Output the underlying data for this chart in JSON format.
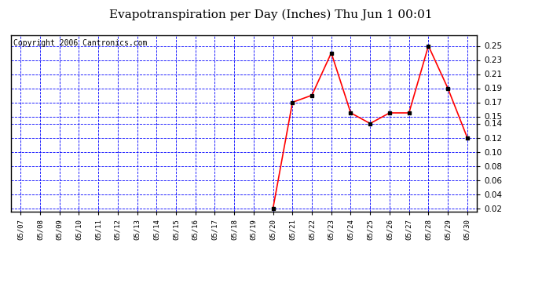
{
  "title": "Evapotranspiration per Day (Inches) Thu Jun 1 00:01",
  "copyright": "Copyright 2006 Cantronics.com",
  "x_labels": [
    "05/07",
    "05/08",
    "05/09",
    "05/10",
    "05/11",
    "05/12",
    "05/13",
    "05/14",
    "05/15",
    "05/16",
    "05/17",
    "05/18",
    "05/19",
    "05/20",
    "05/21",
    "05/22",
    "05/23",
    "05/24",
    "05/25",
    "05/26",
    "05/27",
    "05/28",
    "05/29",
    "05/30"
  ],
  "data_values": [
    0.02,
    0.17,
    0.18,
    0.24,
    0.155,
    0.14,
    0.155,
    0.155,
    0.25,
    0.19,
    0.12
  ],
  "data_indices": [
    13,
    14,
    15,
    16,
    17,
    18,
    19,
    20,
    21,
    22,
    23
  ],
  "ylim_min": 0.015,
  "ylim_max": 0.265,
  "yticks": [
    0.02,
    0.04,
    0.06,
    0.08,
    0.1,
    0.12,
    0.14,
    0.15,
    0.17,
    0.19,
    0.21,
    0.23,
    0.25
  ],
  "line_color": "red",
  "marker": "s",
  "marker_color": "black",
  "marker_size": 3,
  "grid_color": "blue",
  "bg_color": "white",
  "plot_bg_color": "white",
  "border_color": "black",
  "title_fontsize": 11,
  "copyright_fontsize": 7
}
